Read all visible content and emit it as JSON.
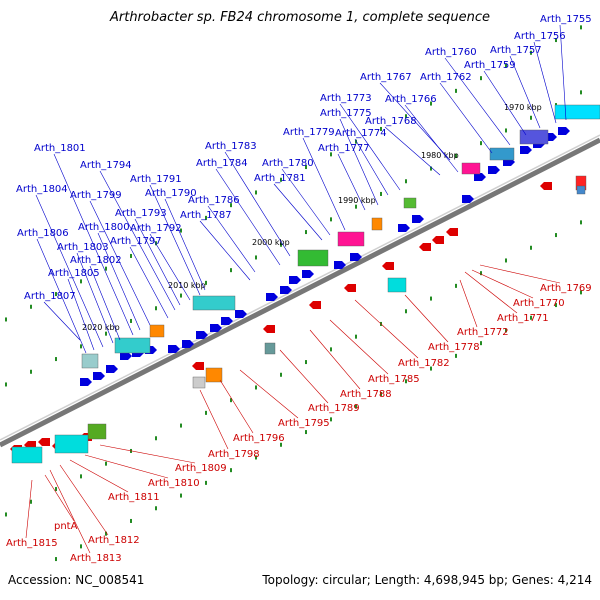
{
  "title": "Arthrobacter sp. FB24 chromosome 1, complete sequence",
  "accession": "Accession: NC_008541",
  "summary": "Topology: circular; Length: 4,698,945 bp; Genes: 4,214",
  "colors": {
    "forward_gene": "#0000dd",
    "reverse_gene": "#dd0000",
    "forward_label": "#0000cc",
    "reverse_label": "#cc0000",
    "backbone": "#888888",
    "tick": "#228b22"
  },
  "scale_labels": [
    "1970 kbp",
    "1980 kbp",
    "1990 kbp",
    "2000 kbp",
    "2010 kbp",
    "2020 kbp"
  ],
  "forward_genes": [
    "Arth_1755",
    "Arth_1756",
    "Arth_1757",
    "Arth_1759",
    "Arth_1760",
    "Arth_1762",
    "Arth_1766",
    "Arth_1767",
    "Arth_1768",
    "Arth_1773",
    "Arth_1774",
    "Arth_1775",
    "Arth_1777",
    "Arth_1779",
    "Arth_1780",
    "Arth_1781",
    "Arth_1783",
    "Arth_1784",
    "Arth_1786",
    "Arth_1787",
    "Arth_1790",
    "Arth_1791",
    "Arth_1792",
    "Arth_1793",
    "Arth_1794",
    "Arth_1797",
    "Arth_1799",
    "Arth_1800",
    "Arth_1801",
    "Arth_1802",
    "Arth_1803",
    "Arth_1804",
    "Arth_1805",
    "Arth_1806",
    "Arth_1807"
  ],
  "reverse_genes": [
    "Arth_1769",
    "Arth_1770",
    "Arth_1771",
    "Arth_1772",
    "Arth_1778",
    "Arth_1782",
    "Arth_1785",
    "Arth_1788",
    "Arth_1789",
    "Arth_1795",
    "Arth_1796",
    "Arth_1798",
    "Arth_1809",
    "Arth_1810",
    "Arth_1811",
    "Arth_1812",
    "Arth_1813",
    "pntA",
    "Arth_1815"
  ]
}
